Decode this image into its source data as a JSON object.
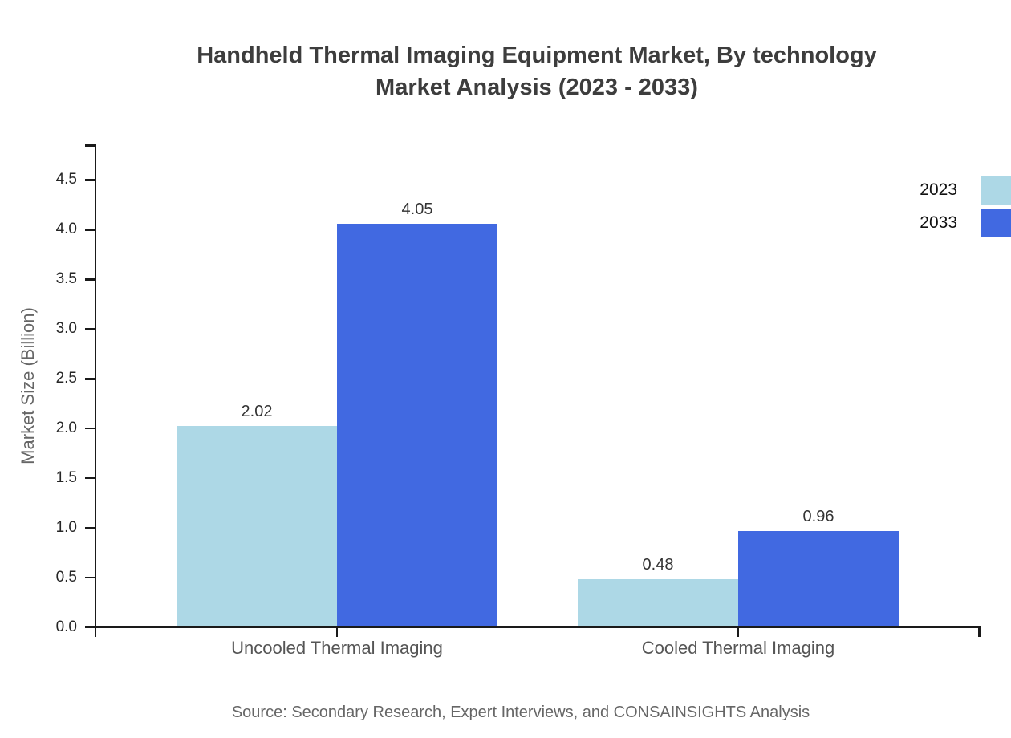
{
  "title": {
    "line1": "Handheld Thermal Imaging Equipment Market, By technology",
    "line2": "Market Analysis (2023 - 2033)"
  },
  "chart_data": {
    "type": "bar",
    "categories": [
      "Uncooled Thermal Imaging",
      "Cooled Thermal Imaging"
    ],
    "series": [
      {
        "name": "2023",
        "color": "#ADD8E6",
        "values": [
          2.02,
          0.48
        ]
      },
      {
        "name": "2033",
        "color": "#4169E1",
        "values": [
          4.05,
          0.96
        ]
      }
    ],
    "value_labels": [
      [
        "2.02",
        "0.48"
      ],
      [
        "4.05",
        "0.96"
      ]
    ],
    "ylabel": "Market Size (Billion)",
    "ylim": [
      0,
      4.5
    ],
    "yticks": [
      "0.0",
      "0.5",
      "1.0",
      "1.5",
      "2.0",
      "2.5",
      "3.0",
      "3.5",
      "4.0",
      "4.5"
    ],
    "grid": false,
    "legend_position": "top-right"
  },
  "footer": {
    "source": "Source: Secondary Research, Expert Interviews, and CONSAINSIGHTS Analysis"
  }
}
